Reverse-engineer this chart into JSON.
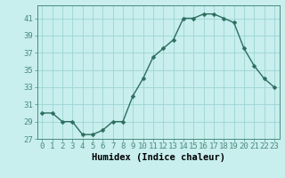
{
  "x": [
    0,
    1,
    2,
    3,
    4,
    5,
    6,
    7,
    8,
    9,
    10,
    11,
    12,
    13,
    14,
    15,
    16,
    17,
    18,
    19,
    20,
    21,
    22,
    23
  ],
  "y": [
    30,
    30,
    29,
    29,
    27.5,
    27.5,
    28,
    29,
    29,
    32,
    34,
    36.5,
    37.5,
    38.5,
    41,
    41,
    41.5,
    41.5,
    41,
    40.5,
    37.5,
    35.5,
    34,
    33
  ],
  "line_color": "#2d6e5e",
  "marker_color": "#2d6e5e",
  "bg_color": "#c8eeee",
  "grid_color": "#9dd4d4",
  "axis_color": "#4a8a7a",
  "xlabel": "Humidex (Indice chaleur)",
  "xlim": [
    -0.5,
    23.5
  ],
  "ylim": [
    27,
    42.5
  ],
  "yticks": [
    27,
    29,
    31,
    33,
    35,
    37,
    39,
    41
  ],
  "xlabel_fontsize": 7.5,
  "tick_fontsize": 6.5,
  "line_width": 1.0,
  "marker_size": 2.5
}
